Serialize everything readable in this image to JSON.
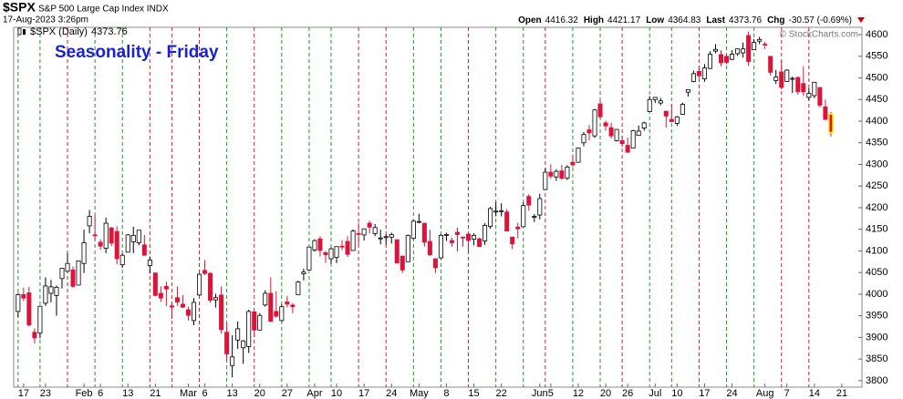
{
  "header": {
    "symbol": "$SPX",
    "name": "S&P 500 Large Cap Index INDX",
    "timestamp": "17-Aug-2023 3:26pm",
    "quote": [
      {
        "label": "Open",
        "value": 4416.32
      },
      {
        "label": "High",
        "value": 4421.17
      },
      {
        "label": "Low",
        "value": 4364.83
      },
      {
        "label": "Last",
        "value": 4373.76
      },
      {
        "label": "Chg",
        "value": "-30.57 (-0.69%)"
      }
    ]
  },
  "chart_data": {
    "type": "candlestick",
    "annotation": "Seasonality - Friday",
    "watermark": "© StockCharts.com",
    "legend": {
      "label": "$SPX (Daily)",
      "value": 4373.76
    },
    "up_color": "#000000",
    "down_color": "#dc143c",
    "highlight_color": "#ffee00",
    "ylim": [
      3785,
      4617
    ],
    "yticks": [
      3800,
      3850,
      3900,
      3950,
      4000,
      4050,
      4100,
      4150,
      4200,
      4250,
      4300,
      4350,
      4400,
      4450,
      4500,
      4550,
      4600
    ],
    "categories": [
      null,
      "17",
      null,
      null,
      null,
      "23",
      null,
      null,
      null,
      null,
      null,
      null,
      "Feb",
      null,
      null,
      "6",
      null,
      null,
      null,
      null,
      "13",
      null,
      null,
      null,
      null,
      "21",
      null,
      null,
      null,
      null,
      null,
      "Mar",
      null,
      null,
      "6",
      null,
      null,
      null,
      null,
      "13",
      null,
      null,
      null,
      null,
      "20",
      null,
      null,
      null,
      null,
      "27",
      null,
      null,
      null,
      null,
      "Apr",
      null,
      null,
      null,
      "10",
      null,
      null,
      null,
      null,
      "17",
      null,
      null,
      null,
      null,
      "24",
      null,
      null,
      null,
      null,
      "May",
      null,
      null,
      null,
      null,
      "8",
      null,
      null,
      null,
      null,
      "15",
      null,
      null,
      null,
      null,
      "22",
      null,
      null,
      null,
      null,
      null,
      null,
      "Jun",
      null,
      "5",
      null,
      null,
      null,
      null,
      "12",
      null,
      null,
      null,
      null,
      "20",
      null,
      null,
      null,
      "26",
      null,
      null,
      null,
      null,
      "Jul",
      null,
      null,
      null,
      "10",
      null,
      null,
      null,
      null,
      "17",
      null,
      null,
      null,
      null,
      "24",
      null,
      null,
      null,
      null,
      null,
      "Aug",
      null,
      null,
      null,
      "7",
      null,
      null,
      null,
      null,
      "14",
      null,
      null,
      null,
      null,
      "21",
      null,
      null
    ],
    "candles": [
      [
        3960,
        4003,
        3947,
        3999
      ],
      [
        3999,
        4015,
        3984,
        3991
      ],
      [
        4003,
        4017,
        3925,
        3929
      ],
      [
        3912,
        3921,
        3886,
        3899
      ],
      [
        3910,
        3973,
        3898,
        3972
      ],
      [
        3979,
        4039,
        3973,
        4019
      ],
      [
        4002,
        4033,
        3981,
        4017
      ],
      [
        3997,
        4020,
        3950,
        4016
      ],
      [
        4036,
        4061,
        4013,
        4060
      ],
      [
        4053,
        4095,
        4049,
        4071
      ],
      [
        4056,
        4064,
        4015,
        4018
      ],
      [
        4021,
        4077,
        4020,
        4077
      ],
      [
        4071,
        4149,
        4049,
        4119
      ],
      [
        4158,
        4195,
        4141,
        4180
      ],
      [
        4137,
        4183,
        4123,
        4136
      ],
      [
        4120,
        4127,
        4103,
        4111
      ],
      [
        4106,
        4177,
        4095,
        4164
      ],
      [
        4153,
        4156,
        4111,
        4118
      ],
      [
        4145,
        4157,
        4069,
        4082
      ],
      [
        4068,
        4094,
        4061,
        4090
      ],
      [
        4097,
        4139,
        4097,
        4137
      ],
      [
        4121,
        4156,
        4095,
        4136
      ],
      [
        4119,
        4148,
        4113,
        4148
      ],
      [
        4114,
        4137,
        4089,
        4090
      ],
      [
        4066,
        4087,
        4048,
        4079
      ],
      [
        4049,
        4050,
        3995,
        3997
      ],
      [
        4002,
        4018,
        3982,
        3991
      ],
      [
        4018,
        4029,
        3972,
        4012
      ],
      [
        3973,
        3979,
        3943,
        3970
      ],
      [
        3992,
        4018,
        3973,
        3982
      ],
      [
        3977,
        3998,
        3968,
        3970
      ],
      [
        3964,
        3971,
        3939,
        3951
      ],
      [
        3939,
        3991,
        3928,
        3981
      ],
      [
        3998,
        4048,
        3996,
        4046
      ],
      [
        4055,
        4079,
        4044,
        4048
      ],
      [
        4048,
        4051,
        3980,
        3986
      ],
      [
        3987,
        4001,
        3969,
        3992
      ],
      [
        3998,
        4018,
        3909,
        3918
      ],
      [
        3912,
        3934,
        3847,
        3862
      ],
      [
        3835,
        3905,
        3808,
        3855
      ],
      [
        3894,
        3937,
        3873,
        3920
      ],
      [
        3876,
        3894,
        3839,
        3892
      ],
      [
        3879,
        3964,
        3864,
        3960
      ],
      [
        3959,
        3959,
        3901,
        3917
      ],
      [
        3917,
        3956,
        3916,
        3951
      ],
      [
        3975,
        4009,
        3971,
        4002
      ],
      [
        4002,
        4039,
        3936,
        3937
      ],
      [
        3960,
        4007,
        3946,
        3949
      ],
      [
        3939,
        3976,
        3937,
        3971
      ],
      [
        3982,
        3996,
        3970,
        3977
      ],
      [
        3975,
        3980,
        3956,
        3971
      ],
      [
        3999,
        4031,
        3999,
        4028
      ],
      [
        4047,
        4059,
        4032,
        4051
      ],
      [
        4056,
        4110,
        4056,
        4109
      ],
      [
        4102,
        4127,
        4098,
        4124
      ],
      [
        4128,
        4134,
        4087,
        4101
      ],
      [
        4096,
        4100,
        4072,
        4091
      ],
      [
        4082,
        4108,
        4070,
        4105
      ],
      [
        4085,
        4110,
        4072,
        4110
      ],
      [
        4111,
        4125,
        4102,
        4109
      ],
      [
        4122,
        4134,
        4086,
        4092
      ],
      [
        4101,
        4150,
        4100,
        4146
      ],
      [
        4140,
        4164,
        4114,
        4138
      ],
      [
        4137,
        4152,
        4124,
        4151
      ],
      [
        4164,
        4170,
        4140,
        4155
      ],
      [
        4140,
        4162,
        4134,
        4154
      ],
      [
        4130,
        4149,
        4115,
        4130
      ],
      [
        4133,
        4138,
        4114,
        4133
      ],
      [
        4132,
        4142,
        4117,
        4138
      ],
      [
        4126,
        4126,
        4072,
        4072
      ],
      [
        4088,
        4089,
        4049,
        4056
      ],
      [
        4075,
        4138,
        4075,
        4136
      ],
      [
        4129,
        4171,
        4127,
        4169
      ],
      [
        4166,
        4186,
        4164,
        4168
      ],
      [
        4164,
        4165,
        4110,
        4120
      ],
      [
        4122,
        4149,
        4088,
        4091
      ],
      [
        4082,
        4082,
        4049,
        4061
      ],
      [
        4084,
        4139,
        4082,
        4136
      ],
      [
        4136,
        4142,
        4123,
        4138
      ],
      [
        4124,
        4131,
        4110,
        4119
      ],
      [
        4143,
        4154,
        4099,
        4138
      ],
      [
        4132,
        4133,
        4110,
        4131
      ],
      [
        4139,
        4143,
        4099,
        4124
      ],
      [
        4127,
        4141,
        4113,
        4136
      ],
      [
        4128,
        4131,
        4110,
        4110
      ],
      [
        4123,
        4164,
        4114,
        4159
      ],
      [
        4157,
        4202,
        4151,
        4198
      ],
      [
        4191,
        4213,
        4180,
        4192
      ],
      [
        4191,
        4210,
        4180,
        4193
      ],
      [
        4190,
        4197,
        4145,
        4146
      ],
      [
        4132,
        4133,
        4104,
        4116
      ],
      [
        4155,
        4165,
        4129,
        4151
      ],
      [
        4156,
        4212,
        4156,
        4205
      ],
      [
        4226,
        4231,
        4193,
        4206
      ],
      [
        4179,
        4185,
        4167,
        4180
      ],
      [
        4183,
        4232,
        4173,
        4221
      ],
      [
        4242,
        4291,
        4242,
        4282
      ],
      [
        4282,
        4300,
        4267,
        4273
      ],
      [
        4271,
        4289,
        4262,
        4284
      ],
      [
        4285,
        4299,
        4264,
        4268
      ],
      [
        4268,
        4298,
        4264,
        4294
      ],
      [
        4305,
        4323,
        4294,
        4299
      ],
      [
        4305,
        4339,
        4304,
        4338
      ],
      [
        4350,
        4375,
        4342,
        4369
      ],
      [
        4380,
        4391,
        4356,
        4373
      ],
      [
        4366,
        4428,
        4361,
        4426
      ],
      [
        4440,
        4449,
        4407,
        4410
      ],
      [
        4396,
        4401,
        4378,
        4389
      ],
      [
        4385,
        4396,
        4360,
        4366
      ],
      [
        4355,
        4382,
        4353,
        4381
      ],
      [
        4355,
        4366,
        4341,
        4348
      ],
      [
        4344,
        4362,
        4328,
        4328
      ],
      [
        4338,
        4380,
        4338,
        4378
      ],
      [
        4367,
        4390,
        4367,
        4377
      ],
      [
        4384,
        4399,
        4378,
        4396
      ],
      [
        4422,
        4458,
        4422,
        4450
      ],
      [
        4450,
        4456,
        4442,
        4455
      ],
      [
        4442,
        4454,
        4437,
        4447
      ],
      [
        4423,
        4424,
        4385,
        4412
      ],
      [
        4404,
        4440,
        4398,
        4399
      ],
      [
        4395,
        4412,
        4389,
        4410
      ],
      [
        4416,
        4443,
        4415,
        4439
      ],
      [
        4467,
        4473,
        4457,
        4473
      ],
      [
        4492,
        4517,
        4490,
        4510
      ],
      [
        4515,
        4528,
        4500,
        4505
      ],
      [
        4498,
        4532,
        4491,
        4523
      ],
      [
        4522,
        4562,
        4520,
        4555
      ],
      [
        4562,
        4578,
        4557,
        4566
      ],
      [
        4554,
        4564,
        4527,
        4535
      ],
      [
        4550,
        4555,
        4532,
        4536
      ],
      [
        4543,
        4564,
        4541,
        4555
      ],
      [
        4556,
        4568,
        4551,
        4567
      ],
      [
        4558,
        4582,
        4547,
        4567
      ],
      [
        4598,
        4607,
        4528,
        4538
      ],
      [
        4565,
        4590,
        4565,
        4582
      ],
      [
        4585,
        4595,
        4578,
        4589
      ],
      [
        4578,
        4584,
        4567,
        4577
      ],
      [
        4550,
        4550,
        4505,
        4513
      ],
      [
        4494,
        4519,
        4486,
        4502
      ],
      [
        4514,
        4540,
        4474,
        4478
      ],
      [
        4492,
        4520,
        4491,
        4518
      ],
      [
        4498,
        4503,
        4465,
        4499
      ],
      [
        4501,
        4503,
        4461,
        4468
      ],
      [
        4487,
        4527,
        4458,
        4468
      ],
      [
        4455,
        4476,
        4448,
        4464
      ],
      [
        4459,
        4490,
        4453,
        4490
      ],
      [
        4478,
        4478,
        4432,
        4437
      ],
      [
        4433,
        4450,
        4403,
        4404
      ],
      [
        4416.32,
        4421.17,
        4364.83,
        4373.76
      ],
      null,
      null,
      null,
      null
    ],
    "vertical_lines": [
      {
        "at": 0,
        "color": "#1e9a1e"
      },
      {
        "at": 4,
        "color": "#1e9a1e"
      },
      {
        "at": 9,
        "color": "#d42020"
      },
      {
        "at": 14,
        "color": "#1e9a1e"
      },
      {
        "at": 19,
        "color": "#1e9a1e"
      },
      {
        "at": 24,
        "color": "#d42020"
      },
      {
        "at": 28,
        "color": "#d42020"
      },
      {
        "at": 33,
        "color": "#d42020"
      },
      {
        "at": 38,
        "color": "#1e9a1e"
      },
      {
        "at": 43,
        "color": "#d42020"
      },
      {
        "at": 48,
        "color": "#1e9a1e"
      },
      {
        "at": 53,
        "color": "#1e9a1e"
      },
      {
        "at": 57,
        "color": "#1e9a1e"
      },
      {
        "at": 62,
        "color": "#d42020"
      },
      {
        "at": 67,
        "color": "#d42020"
      },
      {
        "at": 72,
        "color": "#1e9a1e"
      },
      {
        "at": 77,
        "color": "#1e9a1e"
      },
      {
        "at": 82,
        "color": "#d42020"
      },
      {
        "at": 87,
        "color": "#1e9a1e"
      },
      {
        "at": 92,
        "color": "#1e9a1e"
      },
      {
        "at": 96,
        "color": "#d42020"
      },
      {
        "at": 101,
        "color": "#1e9a1e"
      },
      {
        "at": 106,
        "color": "#1e9a1e"
      },
      {
        "at": 110,
        "color": "#d42020"
      },
      {
        "at": 115,
        "color": "#1e9a1e"
      },
      {
        "at": 119,
        "color": "#1e9a1e"
      },
      {
        "at": 124,
        "color": "#d42020"
      },
      {
        "at": 129,
        "color": "#1e9a1e"
      },
      {
        "at": 134,
        "color": "#1e9a1e"
      },
      {
        "at": 139,
        "color": "#d42020"
      },
      {
        "at": 144,
        "color": "#d42020"
      }
    ]
  }
}
